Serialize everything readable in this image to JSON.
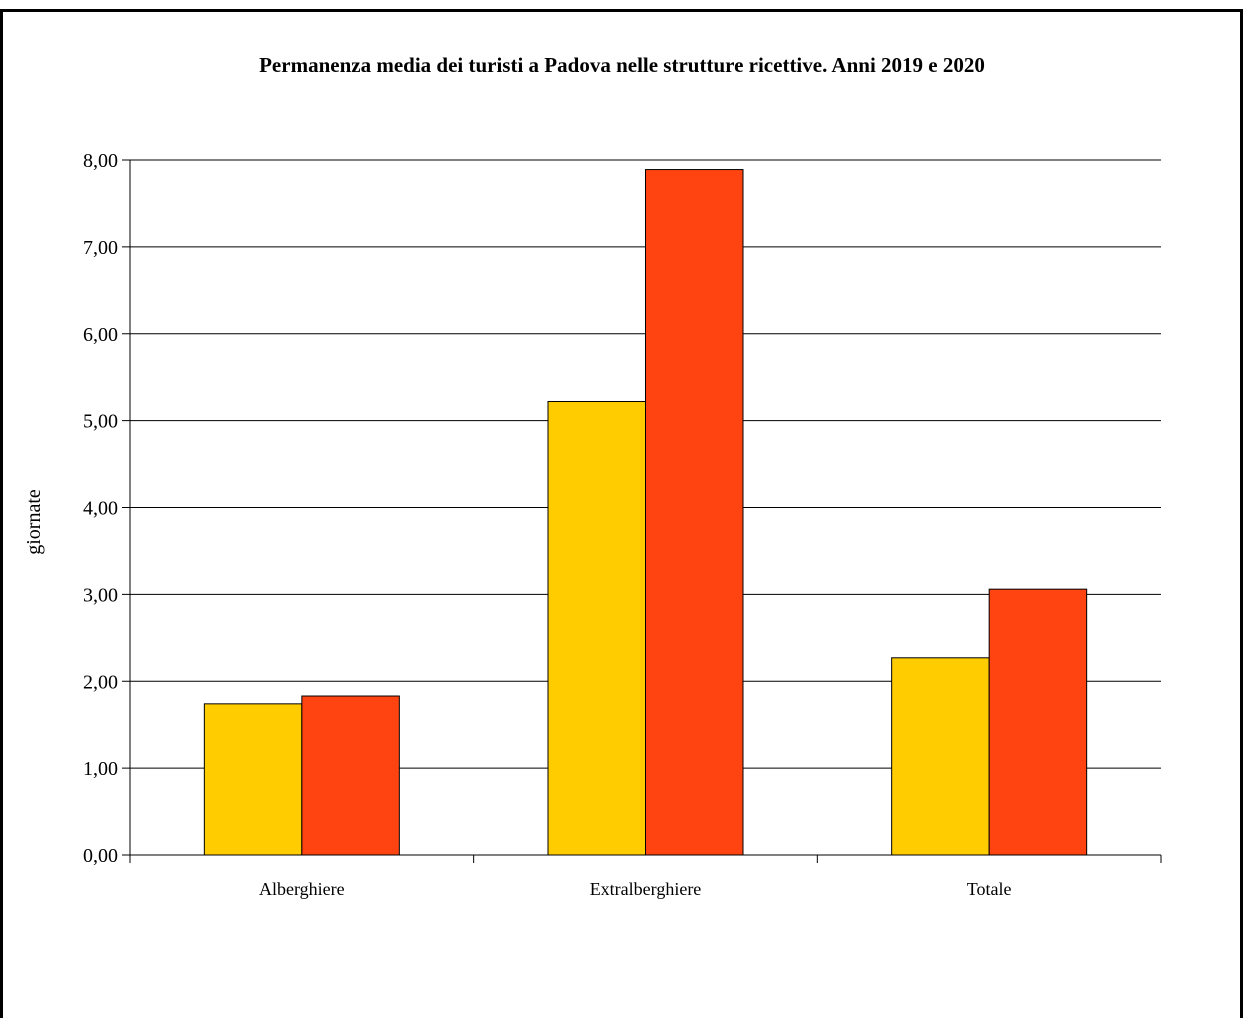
{
  "chart_data": {
    "type": "bar",
    "title": "Permanenza media dei turisti a Padova nelle strutture ricettive. Anni 2019 e 2020",
    "ylabel": "giornate",
    "categories": [
      "Alberghiere",
      "Extralberghiere",
      "Totale"
    ],
    "series": [
      {
        "color": "#ffcc00",
        "values": [
          1.74,
          5.22,
          2.27
        ]
      },
      {
        "color": "#ff4411",
        "values": [
          1.83,
          7.89,
          3.06
        ]
      }
    ],
    "ylim": [
      0,
      8
    ],
    "yticks": [
      {
        "value": 0,
        "label": "0,00"
      },
      {
        "value": 1,
        "label": "1,00"
      },
      {
        "value": 2,
        "label": "2,00"
      },
      {
        "value": 3,
        "label": "3,00"
      },
      {
        "value": 4,
        "label": "4,00"
      },
      {
        "value": 5,
        "label": "5,00"
      },
      {
        "value": 6,
        "label": "6,00"
      },
      {
        "value": 7,
        "label": "7,00"
      },
      {
        "value": 8,
        "label": "8,00"
      }
    ],
    "grid": true
  }
}
